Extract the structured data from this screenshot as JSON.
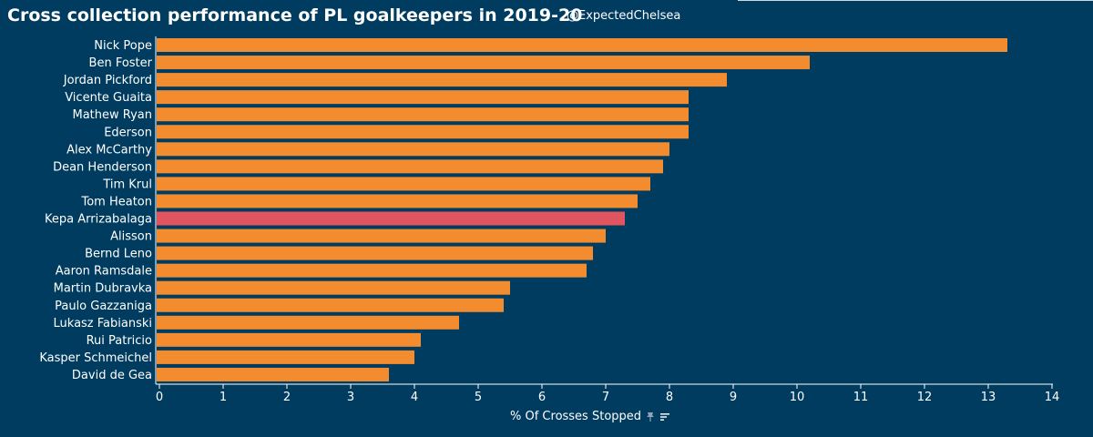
{
  "title": "Cross collection performance of PL goalkeepers in 2019-20",
  "handle": "@ExpectedChelsea",
  "icons": [
    "pin-icon",
    "sort-icon"
  ],
  "colors": {
    "background": "#003c5f",
    "bar": "#f28c2f",
    "highlight": "#e05560",
    "text": "#ffffff"
  },
  "chart_data": {
    "type": "bar",
    "orientation": "horizontal",
    "title": "Cross collection performance of PL goalkeepers in 2019-20",
    "xlabel": "% Of Crosses Stopped",
    "ylabel": "",
    "xlim": [
      0,
      14
    ],
    "xticks": [
      0,
      1,
      2,
      3,
      4,
      5,
      6,
      7,
      8,
      9,
      10,
      11,
      12,
      13,
      14
    ],
    "grid": false,
    "highlighted": "Kepa Arrizabalaga",
    "categories": [
      "Nick Pope",
      "Ben Foster",
      "Jordan Pickford",
      "Vicente Guaita",
      "Mathew Ryan",
      "Ederson",
      "Alex McCarthy",
      "Dean Henderson",
      "Tim Krul",
      "Tom Heaton",
      "Kepa Arrizabalaga",
      "Alisson",
      "Bernd Leno",
      "Aaron Ramsdale",
      "Martin Dubravka",
      "Paulo Gazzaniga",
      "Lukasz Fabianski",
      "Rui Patricio",
      "Kasper Schmeichel",
      "David de Gea"
    ],
    "values": [
      13.3,
      10.2,
      8.9,
      8.3,
      8.3,
      8.3,
      8.0,
      7.9,
      7.7,
      7.5,
      7.3,
      7.0,
      6.8,
      6.7,
      5.5,
      5.4,
      4.7,
      4.1,
      4.0,
      3.6
    ]
  }
}
